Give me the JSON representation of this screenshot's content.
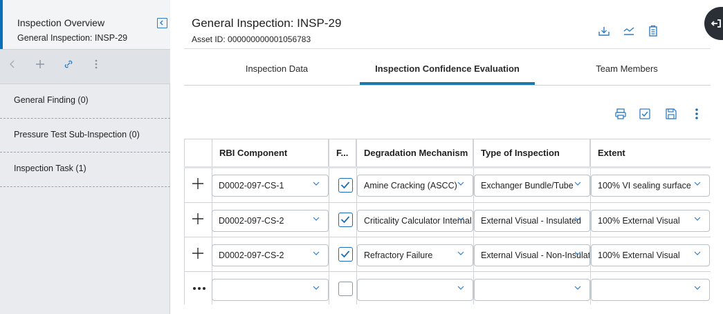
{
  "sidebar": {
    "title": "Inspection Overview",
    "subtitle": "General Inspection: INSP-29",
    "items": [
      {
        "label": "General Finding (0)"
      },
      {
        "label": "Pressure Test Sub-Inspection (0)"
      },
      {
        "label": "Inspection Task (1)"
      }
    ]
  },
  "header": {
    "title": "General Inspection: INSP-29",
    "asset": "Asset ID: 000000000001056783"
  },
  "tabs": [
    {
      "label": "Inspection Data"
    },
    {
      "label": "Inspection Confidence Evaluation",
      "active": true
    },
    {
      "label": "Team Members"
    }
  ],
  "table": {
    "columns": [
      "RBI Component",
      "F...",
      "Degradation Mechanism",
      "Type of Inspection",
      "Extent"
    ],
    "rows": [
      {
        "component": "D0002-097-CS-1",
        "checked": true,
        "mechanism": "Amine Cracking (ASCC)",
        "inspection_type": "Exchanger Bundle/Tube",
        "extent": "100% VI sealing surface"
      },
      {
        "component": "D0002-097-CS-2",
        "checked": true,
        "mechanism": "Criticality Calculator Internal",
        "inspection_type": "External Visual - Insulated",
        "extent": "100% External Visual"
      },
      {
        "component": "D0002-097-CS-2",
        "checked": true,
        "mechanism": "Refractory Failure",
        "inspection_type": "External Visual - Non-Insulated",
        "extent": "100% External Visual"
      },
      {
        "component": "",
        "checked": false,
        "mechanism": "",
        "inspection_type": "",
        "extent": ""
      }
    ]
  },
  "colors": {
    "accent": "#1c7aa6",
    "icon_blue": "#2d7dc6",
    "sidebar_bg": "#e9ebee"
  }
}
